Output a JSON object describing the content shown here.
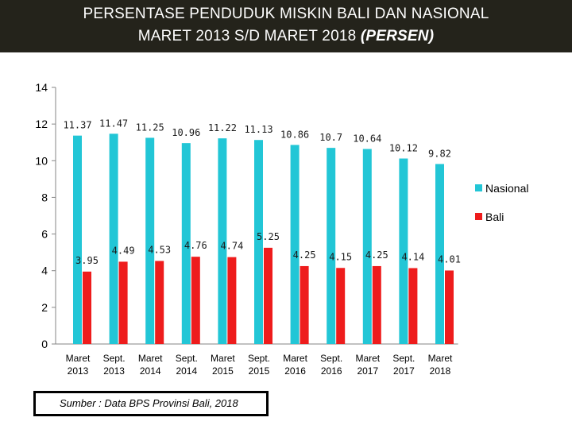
{
  "header": {
    "line1": "PERSENTASE PENDUDUK MISKIN BALI DAN NASIONAL",
    "line2_prefix": "MARET 2013 S/D MARET 2018 ",
    "line2_italic": "(PERSEN)"
  },
  "source_text": "Sumber : Data BPS Provinsi Bali, 2018",
  "chart_data": {
    "type": "bar",
    "title": "PERSENTASE PENDUDUK MISKIN BALI DAN NASIONAL MARET 2013 S/D MARET 2018 (PERSEN)",
    "categories": [
      [
        "Maret",
        "2013"
      ],
      [
        "Sept.",
        "2013"
      ],
      [
        "Maret",
        "2014"
      ],
      [
        "Sept.",
        "2014"
      ],
      [
        "Maret",
        "2015"
      ],
      [
        "Sept.",
        "2015"
      ],
      [
        "Maret",
        "2016"
      ],
      [
        "Sept.",
        "2016"
      ],
      [
        "Maret",
        "2017"
      ],
      [
        "Sept.",
        "2017"
      ],
      [
        "Maret",
        "2018"
      ]
    ],
    "series": [
      {
        "name": "Nasional",
        "color": "#22c6d6",
        "values": [
          11.37,
          11.47,
          11.25,
          10.96,
          11.22,
          11.13,
          10.86,
          10.7,
          10.64,
          10.12,
          9.82
        ],
        "labels": [
          "11.37",
          "11.47",
          "11.25",
          "10.96",
          "11.22",
          "11.13",
          "10.86",
          "10.7",
          "10.64",
          "10.12",
          "9.82"
        ]
      },
      {
        "name": "Bali",
        "color": "#ee1c1c",
        "values": [
          3.95,
          4.49,
          4.53,
          4.76,
          4.74,
          5.25,
          4.25,
          4.15,
          4.25,
          4.14,
          4.01
        ],
        "labels": [
          "3.95",
          "4.49",
          "4.53",
          "4.76",
          "4.74",
          "5.25",
          "4.25",
          "4.15",
          "4.25",
          "4.14",
          "4.01"
        ]
      }
    ],
    "ylim": [
      0,
      14
    ],
    "yticks": [
      "0",
      "2",
      "4",
      "6",
      "8",
      "10",
      "12",
      "14"
    ],
    "xlabel": "",
    "ylabel": "",
    "legend_position": "right"
  }
}
